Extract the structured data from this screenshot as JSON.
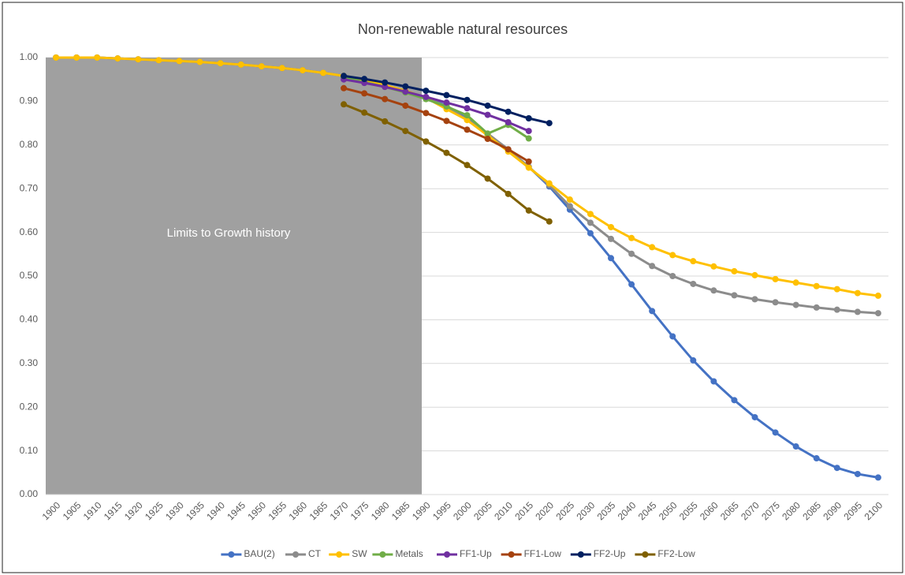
{
  "chart_data": {
    "type": "line",
    "title": "Non-renewable natural resources",
    "annotation": "Limits to Growth history",
    "categories": [
      "1900",
      "1905",
      "1910",
      "1915",
      "1920",
      "1925",
      "1930",
      "1935",
      "1940",
      "1945",
      "1950",
      "1955",
      "1960",
      "1965",
      "1970",
      "1975",
      "1980",
      "1985",
      "1990",
      "1995",
      "2000",
      "2005",
      "2010",
      "2015",
      "2020",
      "2025",
      "2030",
      "2035",
      "2040",
      "2045",
      "2050",
      "2055",
      "2060",
      "2065",
      "2070",
      "2075",
      "2080",
      "2085",
      "2090",
      "2095",
      "2100"
    ],
    "ylim": [
      0,
      1
    ],
    "yticks": [
      {
        "value": 0,
        "label": "0.00"
      },
      {
        "value": 0.1,
        "label": "0.10"
      },
      {
        "value": 0.2,
        "label": "0.20"
      },
      {
        "value": 0.3,
        "label": "0.30"
      },
      {
        "value": 0.4,
        "label": "0.40"
      },
      {
        "value": 0.5,
        "label": "0.50"
      },
      {
        "value": 0.6,
        "label": "0.60"
      },
      {
        "value": 0.7,
        "label": "0.70"
      },
      {
        "value": 0.8,
        "label": "0.80"
      },
      {
        "value": 0.9,
        "label": "0.90"
      },
      {
        "value": 1,
        "label": "1.00"
      }
    ],
    "grid": true,
    "legend": "bottom",
    "series": [
      {
        "name": "BAU(2)",
        "color": "#4472c4",
        "values": [
          1.0,
          1.0,
          1.0,
          0.998,
          0.996,
          0.994,
          0.992,
          0.99,
          0.987,
          0.984,
          0.98,
          0.976,
          0.971,
          0.965,
          0.958,
          0.948,
          0.937,
          0.924,
          0.908,
          0.89,
          0.86,
          0.825,
          0.79,
          0.75,
          0.705,
          0.652,
          0.598,
          0.541,
          0.481,
          0.42,
          0.362,
          0.307,
          0.259,
          0.216,
          0.177,
          0.142,
          0.11,
          0.083,
          0.061,
          0.047,
          0.039
        ]
      },
      {
        "name": "CT",
        "color": "#8c8c8c",
        "values": [
          1.0,
          1.0,
          1.0,
          0.998,
          0.996,
          0.994,
          0.992,
          0.99,
          0.987,
          0.984,
          0.98,
          0.976,
          0.971,
          0.965,
          0.958,
          0.948,
          0.937,
          0.924,
          0.908,
          0.888,
          0.858,
          0.826,
          0.79,
          0.75,
          0.708,
          0.66,
          0.622,
          0.585,
          0.551,
          0.523,
          0.5,
          0.482,
          0.467,
          0.456,
          0.447,
          0.44,
          0.434,
          0.428,
          0.423,
          0.418,
          0.415
        ]
      },
      {
        "name": "SW",
        "color": "#ffc000",
        "values": [
          1.0,
          1.0,
          1.0,
          0.998,
          0.996,
          0.994,
          0.992,
          0.99,
          0.987,
          0.984,
          0.98,
          0.976,
          0.971,
          0.965,
          0.958,
          0.948,
          0.937,
          0.924,
          0.908,
          0.882,
          0.857,
          0.822,
          0.785,
          0.748,
          0.712,
          0.675,
          0.642,
          0.612,
          0.587,
          0.566,
          0.548,
          0.534,
          0.522,
          0.511,
          0.502,
          0.493,
          0.485,
          0.477,
          0.47,
          0.461,
          0.455
        ]
      },
      {
        "name": "Metals",
        "color": "#70ad47",
        "values": [
          null,
          null,
          null,
          null,
          null,
          null,
          null,
          null,
          null,
          null,
          null,
          null,
          null,
          null,
          0.955,
          0.944,
          0.933,
          0.92,
          0.905,
          0.888,
          0.868,
          0.826,
          0.846,
          0.815,
          null,
          null,
          null,
          null,
          null,
          null,
          null,
          null,
          null,
          null,
          null,
          null,
          null,
          null,
          null,
          null,
          null
        ]
      },
      {
        "name": "FF1-Up",
        "color": "#7030a0",
        "values": [
          null,
          null,
          null,
          null,
          null,
          null,
          null,
          null,
          null,
          null,
          null,
          null,
          null,
          null,
          0.95,
          0.942,
          0.933,
          0.922,
          0.91,
          0.897,
          0.884,
          0.869,
          0.852,
          0.832,
          null,
          null,
          null,
          null,
          null,
          null,
          null,
          null,
          null,
          null,
          null,
          null,
          null,
          null,
          null,
          null,
          null
        ]
      },
      {
        "name": "FF1-Low",
        "color": "#a5420f",
        "values": [
          null,
          null,
          null,
          null,
          null,
          null,
          null,
          null,
          null,
          null,
          null,
          null,
          null,
          null,
          0.93,
          0.918,
          0.905,
          0.89,
          0.873,
          0.855,
          0.835,
          0.814,
          0.79,
          0.762,
          null,
          null,
          null,
          null,
          null,
          null,
          null,
          null,
          null,
          null,
          null,
          null,
          null,
          null,
          null,
          null,
          null
        ]
      },
      {
        "name": "FF2-Up",
        "color": "#002060",
        "values": [
          null,
          null,
          null,
          null,
          null,
          null,
          null,
          null,
          null,
          null,
          null,
          null,
          null,
          null,
          0.958,
          0.951,
          0.943,
          0.934,
          0.924,
          0.914,
          0.903,
          0.89,
          0.876,
          0.861,
          0.85,
          null,
          null,
          null,
          null,
          null,
          null,
          null,
          null,
          null,
          null,
          null,
          null,
          null,
          null,
          null,
          null
        ]
      },
      {
        "name": "FF2-Low",
        "color": "#7f6000",
        "values": [
          null,
          null,
          null,
          null,
          null,
          null,
          null,
          null,
          null,
          null,
          null,
          null,
          null,
          null,
          0.893,
          0.874,
          0.854,
          0.832,
          0.808,
          0.782,
          0.754,
          0.723,
          0.688,
          0.65,
          0.625,
          null,
          null,
          null,
          null,
          null,
          null,
          null,
          null,
          null,
          null,
          null,
          null,
          null,
          null,
          null,
          null
        ]
      }
    ]
  }
}
